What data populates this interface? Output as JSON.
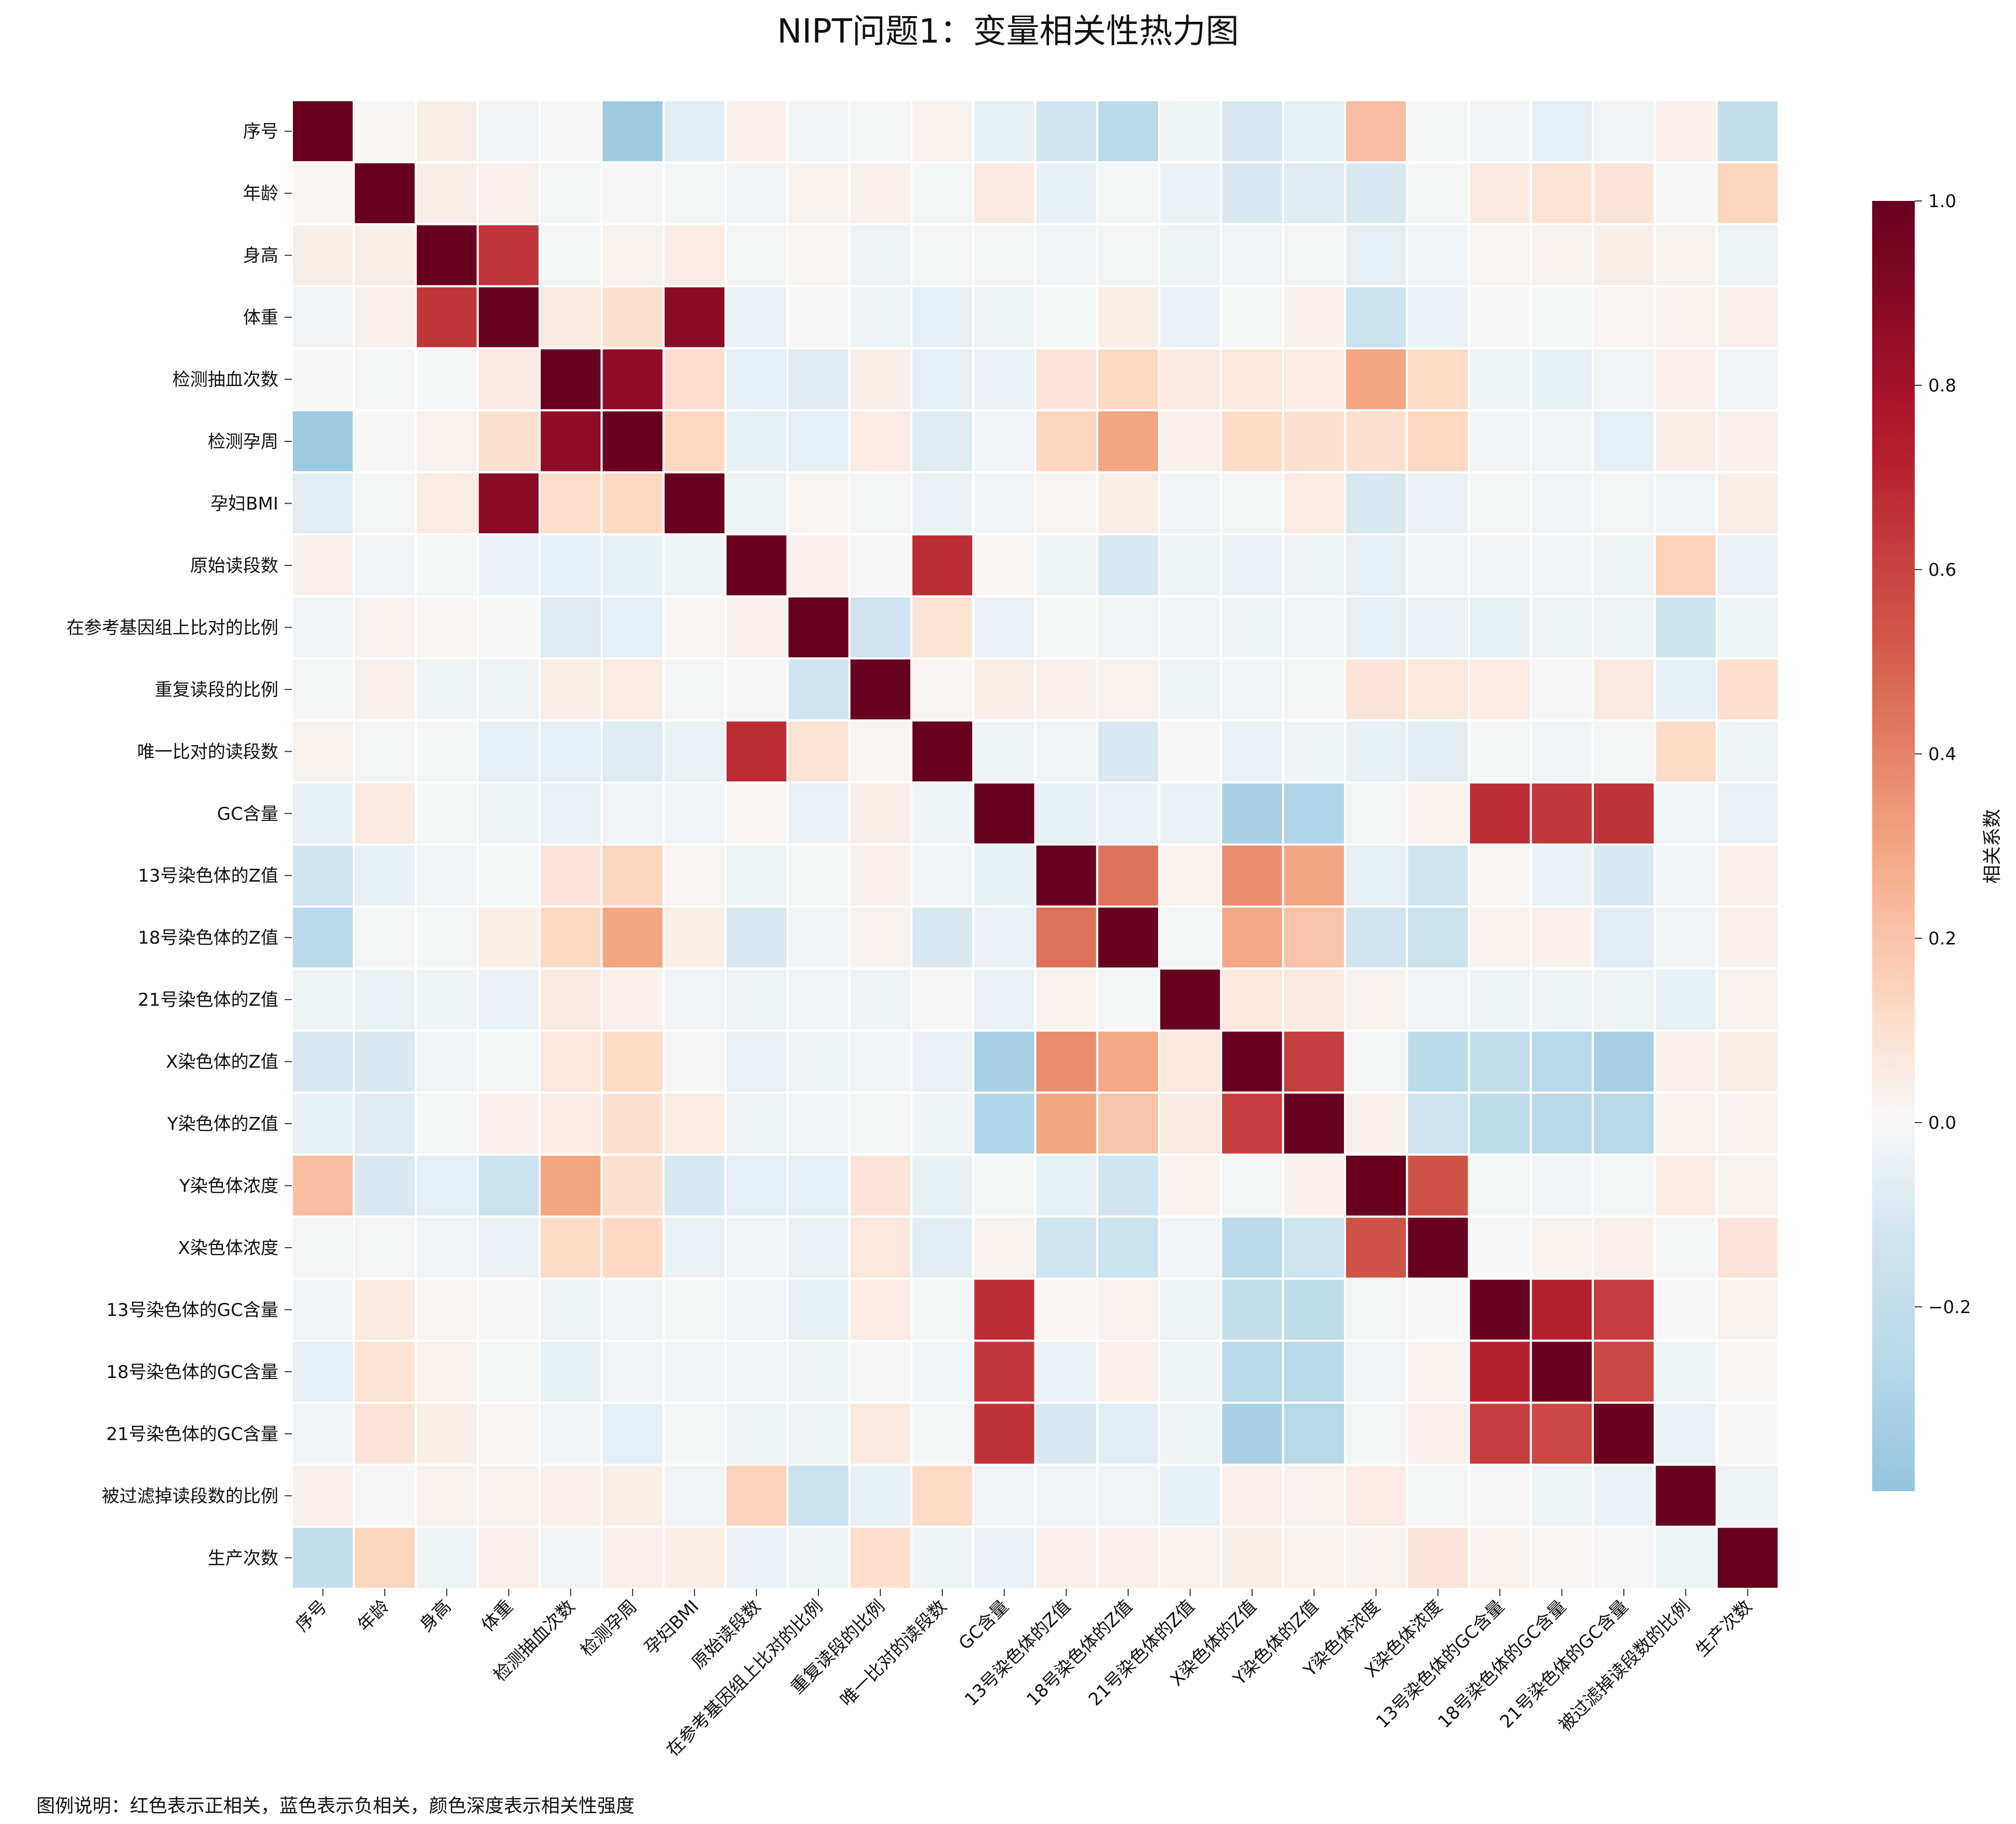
{
  "chart_data": {
    "type": "heatmap",
    "title": "NIPT问题1：变量相关性热力图",
    "variables": [
      "序号",
      "年龄",
      "身高",
      "体重",
      "检测抽血次数",
      "检测孕周",
      "孕妇BMI",
      "原始读段数",
      "在参考基因组上比对的比例",
      "重复读段的比例",
      "唯一比对的读段数  ",
      "GC含量",
      "13号染色体的Z值",
      "18号染色体的Z值",
      "21号染色体的Z值",
      "X染色体的Z值",
      "Y染色体的Z值",
      "Y染色体浓度",
      "X染色体浓度",
      "13号染色体的GC含量",
      "18号染色体的GC含量",
      "21号染色体的GC含量",
      "被过滤掉读段数的比例",
      "生产次数"
    ],
    "matrix": [
      [
        1.0,
        0.01,
        0.04,
        -0.02,
        0.0,
        -0.36,
        -0.07,
        0.03,
        -0.02,
        -0.01,
        0.02,
        -0.05,
        -0.12,
        -0.24,
        -0.03,
        -0.1,
        -0.05,
        0.22,
        -0.01,
        -0.02,
        -0.06,
        -0.02,
        0.03,
        -0.2
      ],
      [
        0.01,
        1.0,
        0.04,
        0.03,
        -0.01,
        0.0,
        -0.01,
        -0.02,
        0.02,
        0.03,
        -0.01,
        0.06,
        -0.05,
        -0.01,
        -0.04,
        -0.1,
        -0.08,
        -0.1,
        -0.01,
        0.06,
        0.09,
        0.08,
        0.0,
        0.14
      ],
      [
        0.04,
        0.04,
        1.0,
        0.65,
        -0.01,
        0.02,
        0.05,
        -0.01,
        0.01,
        -0.03,
        -0.01,
        -0.01,
        -0.02,
        -0.01,
        -0.03,
        -0.02,
        -0.01,
        -0.06,
        -0.02,
        0.01,
        0.02,
        0.04,
        0.02,
        -0.03
      ],
      [
        -0.02,
        0.03,
        0.65,
        1.0,
        0.06,
        0.1,
        0.88,
        -0.04,
        0.0,
        -0.03,
        -0.06,
        -0.03,
        -0.01,
        0.04,
        -0.04,
        -0.01,
        0.03,
        -0.15,
        -0.04,
        0.0,
        -0.01,
        0.01,
        0.02,
        0.03
      ],
      [
        0.0,
        -0.01,
        -0.01,
        0.06,
        1.0,
        0.87,
        0.11,
        -0.06,
        -0.08,
        0.04,
        -0.06,
        -0.04,
        0.08,
        0.13,
        0.06,
        0.07,
        0.05,
        0.3,
        0.12,
        -0.03,
        -0.05,
        -0.02,
        0.03,
        -0.02
      ],
      [
        -0.36,
        0.0,
        0.02,
        0.1,
        0.87,
        1.0,
        0.13,
        -0.05,
        -0.06,
        0.05,
        -0.08,
        -0.02,
        0.14,
        0.3,
        0.03,
        0.12,
        0.1,
        0.1,
        0.13,
        -0.02,
        -0.02,
        -0.06,
        0.04,
        0.03
      ],
      [
        -0.07,
        -0.01,
        0.05,
        0.88,
        0.11,
        0.13,
        1.0,
        -0.03,
        0.01,
        -0.01,
        -0.04,
        -0.02,
        0.01,
        0.04,
        -0.02,
        -0.01,
        0.05,
        -0.1,
        -0.04,
        -0.01,
        -0.02,
        -0.01,
        -0.02,
        0.04
      ],
      [
        0.03,
        -0.02,
        -0.01,
        -0.04,
        -0.06,
        -0.05,
        -0.03,
        1.0,
        0.03,
        0.0,
        0.68,
        0.01,
        -0.03,
        -0.1,
        -0.03,
        -0.04,
        -0.03,
        -0.06,
        -0.02,
        -0.02,
        -0.02,
        -0.03,
        0.15,
        -0.04
      ],
      [
        -0.02,
        0.02,
        0.01,
        0.0,
        -0.08,
        -0.06,
        0.01,
        0.03,
        1.0,
        -0.13,
        0.09,
        -0.04,
        -0.01,
        -0.02,
        -0.02,
        -0.03,
        -0.02,
        -0.06,
        -0.04,
        -0.05,
        -0.03,
        -0.03,
        -0.15,
        -0.03
      ],
      [
        -0.01,
        0.03,
        -0.03,
        -0.03,
        0.04,
        0.05,
        -0.01,
        0.0,
        -0.13,
        1.0,
        0.01,
        0.04,
        0.03,
        0.02,
        -0.03,
        -0.02,
        -0.01,
        0.08,
        0.07,
        0.05,
        0.0,
        0.06,
        -0.05,
        0.11
      ],
      [
        0.02,
        -0.01,
        -0.01,
        -0.06,
        -0.06,
        -0.08,
        -0.04,
        0.68,
        0.09,
        0.01,
        1.0,
        -0.03,
        -0.02,
        -0.1,
        0.0,
        -0.04,
        -0.03,
        -0.05,
        -0.07,
        -0.01,
        -0.02,
        -0.01,
        0.12,
        -0.03
      ],
      [
        -0.05,
        0.06,
        -0.01,
        -0.03,
        -0.04,
        -0.02,
        -0.02,
        0.01,
        -0.04,
        0.04,
        -0.03,
        1.0,
        -0.05,
        -0.04,
        -0.04,
        -0.32,
        -0.28,
        -0.01,
        0.02,
        0.68,
        0.64,
        0.66,
        -0.02,
        -0.04
      ],
      [
        -0.12,
        -0.05,
        -0.02,
        -0.01,
        0.08,
        0.14,
        0.01,
        -0.03,
        -0.01,
        0.03,
        -0.02,
        -0.05,
        1.0,
        0.45,
        0.02,
        0.37,
        0.3,
        -0.05,
        -0.13,
        0.01,
        -0.04,
        -0.1,
        -0.02,
        0.03
      ],
      [
        -0.24,
        -0.01,
        -0.01,
        0.04,
        0.13,
        0.3,
        0.04,
        -0.1,
        -0.02,
        0.02,
        -0.1,
        -0.04,
        0.45,
        1.0,
        -0.01,
        0.29,
        0.2,
        -0.12,
        -0.15,
        0.02,
        0.03,
        -0.07,
        -0.02,
        0.03
      ],
      [
        -0.03,
        -0.04,
        -0.03,
        -0.04,
        0.06,
        0.03,
        -0.02,
        -0.03,
        -0.02,
        -0.03,
        0.0,
        -0.04,
        0.02,
        -0.01,
        1.0,
        0.07,
        0.06,
        0.02,
        -0.02,
        -0.03,
        -0.03,
        -0.03,
        -0.05,
        0.02
      ],
      [
        -0.1,
        -0.1,
        -0.02,
        -0.01,
        0.07,
        0.12,
        0.0,
        -0.04,
        -0.03,
        -0.02,
        -0.04,
        -0.32,
        0.37,
        0.29,
        0.07,
        1.0,
        0.62,
        -0.01,
        -0.24,
        -0.2,
        -0.26,
        -0.32,
        0.03,
        0.04
      ],
      [
        -0.05,
        -0.08,
        -0.01,
        0.03,
        0.05,
        0.1,
        0.05,
        -0.03,
        -0.02,
        -0.01,
        -0.03,
        -0.28,
        0.3,
        0.2,
        0.06,
        0.62,
        1.0,
        0.03,
        -0.14,
        -0.22,
        -0.25,
        -0.26,
        0.02,
        0.02
      ],
      [
        0.22,
        -0.1,
        -0.06,
        -0.15,
        0.3,
        0.1,
        -0.1,
        -0.06,
        -0.06,
        0.08,
        -0.05,
        -0.01,
        -0.05,
        -0.12,
        0.02,
        -0.01,
        0.03,
        1.0,
        0.55,
        -0.01,
        -0.02,
        -0.01,
        0.05,
        0.02
      ],
      [
        -0.01,
        -0.01,
        -0.02,
        -0.04,
        0.12,
        0.13,
        -0.04,
        -0.02,
        -0.04,
        0.07,
        -0.07,
        0.02,
        -0.13,
        -0.15,
        -0.02,
        -0.24,
        -0.14,
        0.55,
        1.0,
        0.0,
        0.02,
        0.03,
        -0.01,
        0.08
      ],
      [
        -0.02,
        0.06,
        0.01,
        0.0,
        -0.03,
        -0.02,
        -0.01,
        -0.02,
        -0.05,
        0.05,
        -0.01,
        0.68,
        0.01,
        0.02,
        -0.03,
        -0.2,
        -0.22,
        -0.01,
        0.0,
        1.0,
        0.72,
        0.62,
        0.0,
        0.02
      ],
      [
        -0.06,
        0.09,
        0.02,
        -0.01,
        -0.05,
        -0.02,
        -0.02,
        -0.02,
        -0.03,
        0.0,
        -0.02,
        0.64,
        -0.04,
        0.03,
        -0.03,
        -0.26,
        -0.25,
        -0.02,
        0.02,
        0.72,
        1.0,
        0.58,
        -0.03,
        0.01
      ],
      [
        -0.02,
        0.08,
        0.04,
        0.01,
        -0.02,
        -0.06,
        -0.01,
        -0.03,
        -0.03,
        0.06,
        -0.01,
        0.66,
        -0.1,
        -0.07,
        -0.03,
        -0.32,
        -0.26,
        -0.01,
        0.03,
        0.62,
        0.58,
        1.0,
        -0.04,
        0.0
      ],
      [
        0.03,
        0.0,
        0.02,
        0.02,
        0.03,
        0.04,
        -0.02,
        0.15,
        -0.15,
        -0.05,
        0.12,
        -0.02,
        -0.02,
        -0.02,
        -0.05,
        0.03,
        0.02,
        0.05,
        -0.01,
        0.0,
        -0.03,
        -0.04,
        1.0,
        -0.03
      ],
      [
        -0.2,
        0.14,
        -0.03,
        0.03,
        -0.02,
        0.03,
        0.04,
        -0.04,
        -0.03,
        0.11,
        -0.03,
        -0.04,
        0.03,
        0.03,
        0.02,
        0.04,
        0.02,
        0.02,
        0.08,
        0.02,
        0.01,
        0.0,
        -0.03,
        1.0
      ]
    ],
    "colorbar": {
      "label": "相关系数",
      "vmin": -0.4,
      "vmax": 1.0,
      "ticks": [
        1.0,
        0.8,
        0.6,
        0.4,
        0.2,
        0.0,
        -0.2
      ],
      "tick_labels": [
        "1.0",
        "0.8",
        "0.6",
        "0.4",
        "0.2",
        "0.0",
        "−0.2"
      ],
      "colormap": "RdBu_r",
      "stops": [
        {
          "v": -1.0,
          "color": "#053061"
        },
        {
          "v": -0.75,
          "color": "#2166ac"
        },
        {
          "v": -0.5,
          "color": "#4393c3"
        },
        {
          "v": -0.4,
          "color": "#92c5de"
        },
        {
          "v": -0.25,
          "color": "#b9d9ea"
        },
        {
          "v": -0.12,
          "color": "#d1e5f0"
        },
        {
          "v": 0.0,
          "color": "#f7f7f7"
        },
        {
          "v": 0.12,
          "color": "#fddbc7"
        },
        {
          "v": 0.3,
          "color": "#f4a582"
        },
        {
          "v": 0.5,
          "color": "#d6604d"
        },
        {
          "v": 0.75,
          "color": "#b2182b"
        },
        {
          "v": 1.0,
          "color": "#67001f"
        }
      ]
    },
    "grid_line_color": "#ffffff",
    "footnote": "图例说明：红色表示正相关，蓝色表示负相关，颜色深度表示相关性强度"
  }
}
